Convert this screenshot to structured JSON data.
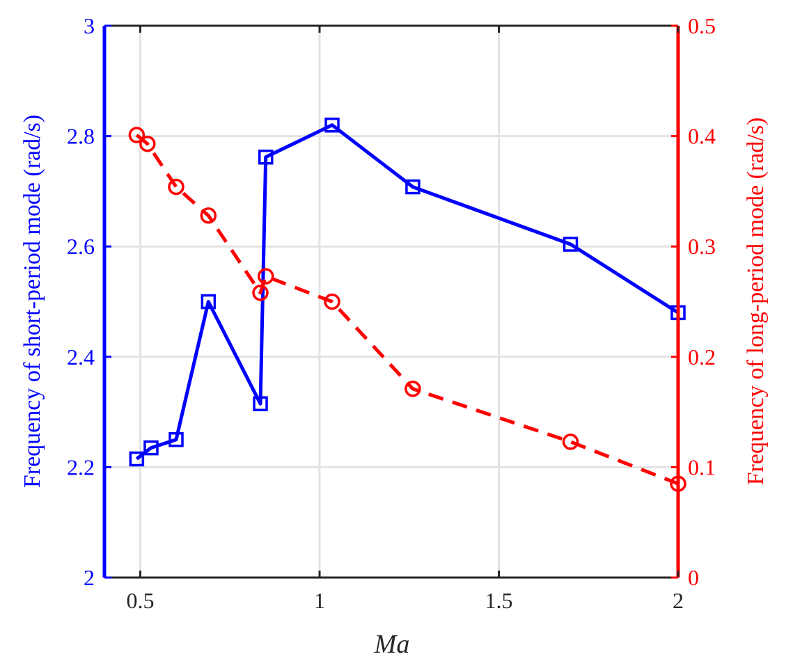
{
  "chart_data": {
    "type": "line",
    "xlabel": "Ma",
    "xlim": [
      0.4,
      2
    ],
    "xticks": [
      "0.5",
      "1",
      "1.5",
      "2"
    ],
    "xtick_values": [
      0.5,
      1,
      1.5,
      2
    ],
    "grid": true,
    "y_left": {
      "label": "Frequency of short-period mode (rad/s)",
      "lim": [
        2,
        3
      ],
      "ticks": [
        "2",
        "2.2",
        "2.4",
        "2.6",
        "2.8",
        "3"
      ],
      "tick_values": [
        2,
        2.2,
        2.4,
        2.6,
        2.8,
        3
      ],
      "color": "#0000ff"
    },
    "y_right": {
      "label": "Frequency of long-period mode (rad/s)",
      "lim": [
        0,
        0.5
      ],
      "ticks": [
        "0",
        "0.1",
        "0.2",
        "0.3",
        "0.4",
        "0.5"
      ],
      "tick_values": [
        0,
        0.1,
        0.2,
        0.3,
        0.4,
        0.5
      ],
      "color": "#ff0000"
    },
    "series": [
      {
        "axis": "left",
        "color": "#0000ff",
        "line_style": "solid",
        "marker": "square",
        "x": [
          0.49,
          0.53,
          0.6,
          0.69,
          0.835,
          0.85,
          1.035,
          1.26,
          1.7,
          2.0
        ],
        "y": [
          2.215,
          2.235,
          2.25,
          2.5,
          2.315,
          2.762,
          2.82,
          2.708,
          2.604,
          2.48
        ]
      },
      {
        "axis": "right",
        "color": "#ff0000",
        "line_style": "dashed",
        "marker": "circle",
        "x": [
          0.49,
          0.52,
          0.6,
          0.69,
          0.835,
          0.85,
          1.035,
          1.26,
          1.7,
          2.0
        ],
        "y": [
          0.401,
          0.393,
          0.354,
          0.328,
          0.258,
          0.273,
          0.25,
          0.171,
          0.123,
          0.085
        ]
      }
    ]
  }
}
